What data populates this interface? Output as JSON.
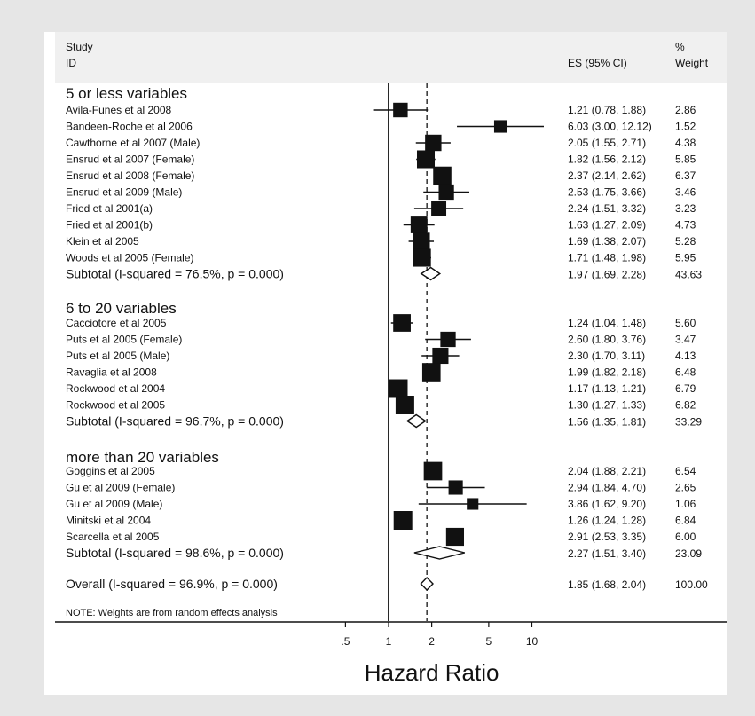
{
  "chart_data": {
    "type": "forest",
    "header": {
      "study_line1": "Study",
      "study_line2": "ID",
      "es": "ES (95% CI)",
      "weight_line1": "%",
      "weight_line2": "Weight"
    },
    "xlabel": "Hazard Ratio",
    "x_scale": "log",
    "x_ticks": [
      {
        "value": 0.5,
        "label": ".5"
      },
      {
        "value": 1,
        "label": "1"
      },
      {
        "value": 2,
        "label": "2"
      },
      {
        "value": 5,
        "label": "5"
      },
      {
        "value": 10,
        "label": "10"
      }
    ],
    "null_line": 1,
    "overall_line": 1.85,
    "groups": [
      {
        "label": "5 or less variables",
        "studies": [
          {
            "name": "Avila-Funes et al 2008",
            "es": 1.21,
            "lo": 0.78,
            "hi": 1.88,
            "es_text": "1.21 (0.78, 1.88)",
            "weight": 2.86,
            "weight_text": "2.86"
          },
          {
            "name": "Bandeen-Roche et al 2006",
            "es": 6.03,
            "lo": 3.0,
            "hi": 12.12,
            "es_text": "6.03 (3.00, 12.12)",
            "weight": 1.52,
            "weight_text": "1.52"
          },
          {
            "name": "Cawthorne et al 2007 (Male)",
            "es": 2.05,
            "lo": 1.55,
            "hi": 2.71,
            "es_text": "2.05 (1.55, 2.71)",
            "weight": 4.38,
            "weight_text": "4.38"
          },
          {
            "name": "Ensrud et al 2007 (Female)",
            "es": 1.82,
            "lo": 1.56,
            "hi": 2.12,
            "es_text": "1.82 (1.56, 2.12)",
            "weight": 5.85,
            "weight_text": "5.85"
          },
          {
            "name": "Ensrud et al 2008 (Female)",
            "es": 2.37,
            "lo": 2.14,
            "hi": 2.62,
            "es_text": "2.37 (2.14, 2.62)",
            "weight": 6.37,
            "weight_text": "6.37"
          },
          {
            "name": "Ensrud et al 2009 (Male)",
            "es": 2.53,
            "lo": 1.75,
            "hi": 3.66,
            "es_text": "2.53 (1.75, 3.66)",
            "weight": 3.46,
            "weight_text": "3.46"
          },
          {
            "name": "Fried et al 2001(a)",
            "es": 2.24,
            "lo": 1.51,
            "hi": 3.32,
            "es_text": "2.24 (1.51, 3.32)",
            "weight": 3.23,
            "weight_text": "3.23"
          },
          {
            "name": "Fried et al 2001(b)",
            "es": 1.63,
            "lo": 1.27,
            "hi": 2.09,
            "es_text": "1.63 (1.27, 2.09)",
            "weight": 4.73,
            "weight_text": "4.73"
          },
          {
            "name": "Klein et al 2005",
            "es": 1.69,
            "lo": 1.38,
            "hi": 2.07,
            "es_text": "1.69 (1.38, 2.07)",
            "weight": 5.28,
            "weight_text": "5.28"
          },
          {
            "name": "Woods et al 2005 (Female)",
            "es": 1.71,
            "lo": 1.48,
            "hi": 1.98,
            "es_text": "1.71 (1.48, 1.98)",
            "weight": 5.95,
            "weight_text": "5.95"
          }
        ],
        "subtotal": {
          "label": "Subtotal  (I-squared = 76.5%, p = 0.000)",
          "es": 1.97,
          "lo": 1.69,
          "hi": 2.28,
          "es_text": "1.97 (1.69, 2.28)",
          "weight_text": "43.63"
        }
      },
      {
        "label": "6 to 20 variables",
        "studies": [
          {
            "name": "Cacciotore et al 2005",
            "es": 1.24,
            "lo": 1.04,
            "hi": 1.48,
            "es_text": "1.24 (1.04, 1.48)",
            "weight": 5.6,
            "weight_text": "5.60"
          },
          {
            "name": "Puts et al 2005 (Female)",
            "es": 2.6,
            "lo": 1.8,
            "hi": 3.76,
            "es_text": "2.60 (1.80, 3.76)",
            "weight": 3.47,
            "weight_text": "3.47"
          },
          {
            "name": "Puts et al 2005 (Male)",
            "es": 2.3,
            "lo": 1.7,
            "hi": 3.11,
            "es_text": "2.30 (1.70, 3.11)",
            "weight": 4.13,
            "weight_text": "4.13"
          },
          {
            "name": "Ravaglia et al 2008",
            "es": 1.99,
            "lo": 1.82,
            "hi": 2.18,
            "es_text": "1.99 (1.82, 2.18)",
            "weight": 6.48,
            "weight_text": "6.48"
          },
          {
            "name": "Rockwood et al 2004",
            "es": 1.17,
            "lo": 1.13,
            "hi": 1.21,
            "es_text": "1.17 (1.13, 1.21)",
            "weight": 6.79,
            "weight_text": "6.79"
          },
          {
            "name": "Rockwood et al 2005",
            "es": 1.3,
            "lo": 1.27,
            "hi": 1.33,
            "es_text": "1.30 (1.27, 1.33)",
            "weight": 6.82,
            "weight_text": "6.82"
          }
        ],
        "subtotal": {
          "label": "Subtotal  (I-squared = 96.7%, p = 0.000)",
          "es": 1.56,
          "lo": 1.35,
          "hi": 1.81,
          "es_text": "1.56 (1.35, 1.81)",
          "weight_text": "33.29"
        }
      },
      {
        "label": "more than 20 variables",
        "studies": [
          {
            "name": "Goggins et al 2005",
            "es": 2.04,
            "lo": 1.88,
            "hi": 2.21,
            "es_text": "2.04 (1.88, 2.21)",
            "weight": 6.54,
            "weight_text": "6.54"
          },
          {
            "name": "Gu et al 2009 (Female)",
            "es": 2.94,
            "lo": 1.84,
            "hi": 4.7,
            "es_text": "2.94 (1.84, 4.70)",
            "weight": 2.65,
            "weight_text": "2.65"
          },
          {
            "name": "Gu et al 2009 (Male)",
            "es": 3.86,
            "lo": 1.62,
            "hi": 9.2,
            "es_text": "3.86 (1.62, 9.20)",
            "weight": 1.06,
            "weight_text": "1.06"
          },
          {
            "name": "Minitski et al 2004",
            "es": 1.26,
            "lo": 1.24,
            "hi": 1.28,
            "es_text": "1.26 (1.24, 1.28)",
            "weight": 6.84,
            "weight_text": "6.84"
          },
          {
            "name": "Scarcella et al 2005",
            "es": 2.91,
            "lo": 2.53,
            "hi": 3.35,
            "es_text": "2.91 (2.53, 3.35)",
            "weight": 6.0,
            "weight_text": "6.00"
          }
        ],
        "subtotal": {
          "label": "Subtotal  (I-squared = 98.6%, p = 0.000)",
          "es": 2.27,
          "lo": 1.51,
          "hi": 3.4,
          "es_text": "2.27 (1.51, 3.40)",
          "weight_text": "23.09"
        }
      }
    ],
    "overall": {
      "label": "Overall  (I-squared = 96.9%, p = 0.000)",
      "es": 1.85,
      "lo": 1.68,
      "hi": 2.04,
      "es_text": "1.85 (1.68, 2.04)",
      "weight_text": "100.00"
    },
    "note": "NOTE: Weights are from random effects analysis",
    "colors": {
      "background": "#e6e6e6",
      "panel": "#ffffff",
      "ink": "#111111",
      "header_band": "#f0f0f0"
    }
  }
}
